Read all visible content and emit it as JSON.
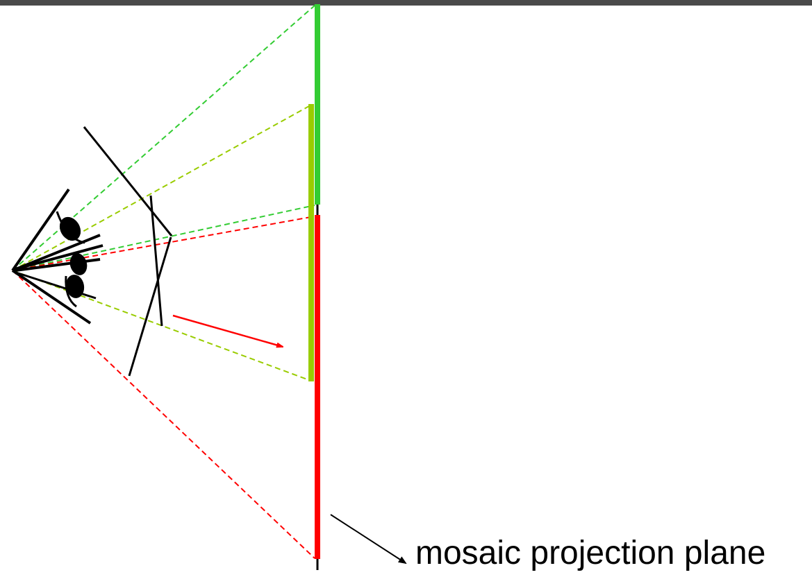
{
  "caption": "mosaic projection plane",
  "colors": {
    "green": "#33cc33",
    "yellow_green": "#99cc00",
    "red": "#ff0000",
    "black": "#000000",
    "top_bar": "#4a4a4a"
  }
}
